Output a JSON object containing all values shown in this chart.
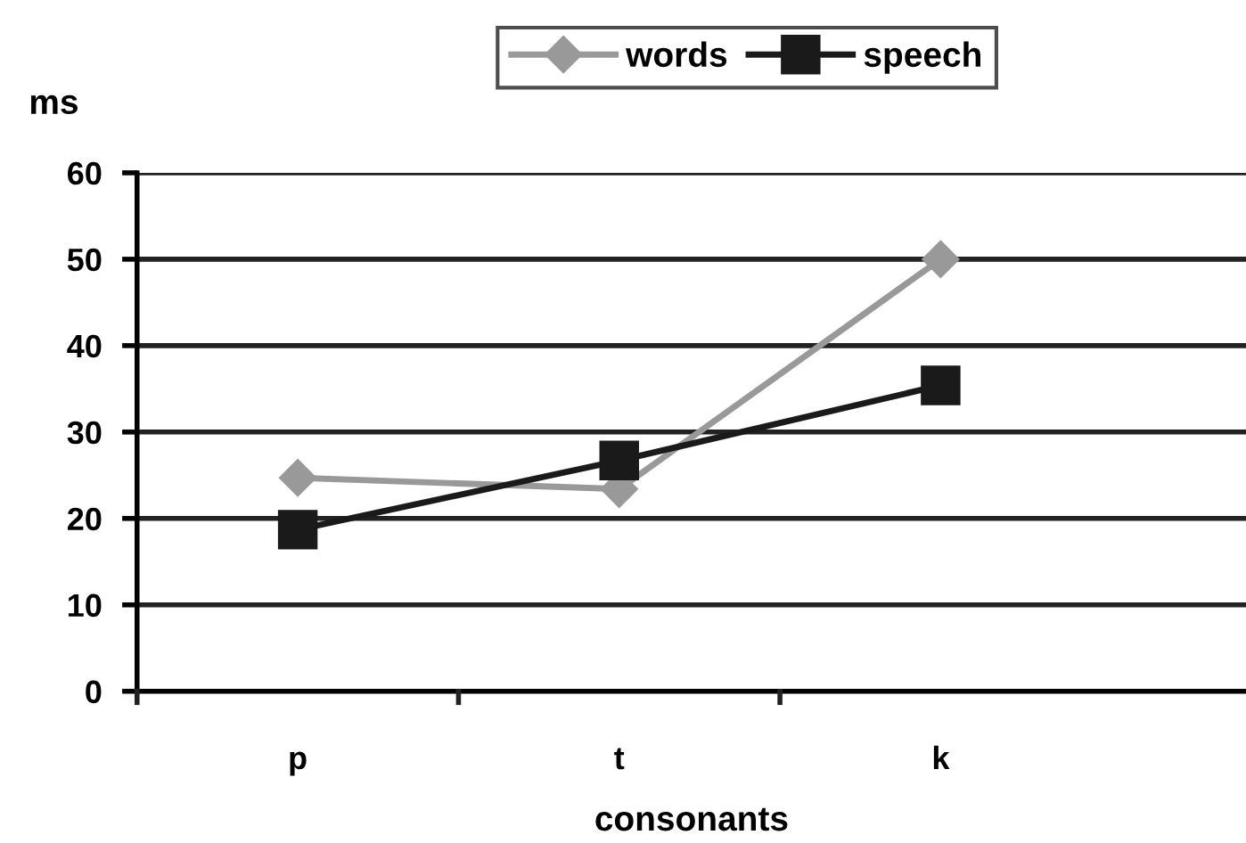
{
  "chart_data": {
    "type": "line",
    "xlabel": "consonants",
    "ylabel": "ms",
    "categories": [
      "p",
      "t",
      "k"
    ],
    "series": [
      {
        "name": "words",
        "color": "#999999",
        "values": [
          24.7,
          23.4,
          50
        ],
        "marker": "diamond"
      },
      {
        "name": "speech",
        "color": "#1a1a1a",
        "values": [
          18.7,
          26.7,
          35.4
        ],
        "marker": "square"
      }
    ],
    "ylim": [
      0,
      60
    ],
    "yticks": [
      0,
      10,
      20,
      30,
      40,
      50,
      60
    ],
    "grid": "y",
    "legend": "top",
    "line_style": "solid"
  }
}
